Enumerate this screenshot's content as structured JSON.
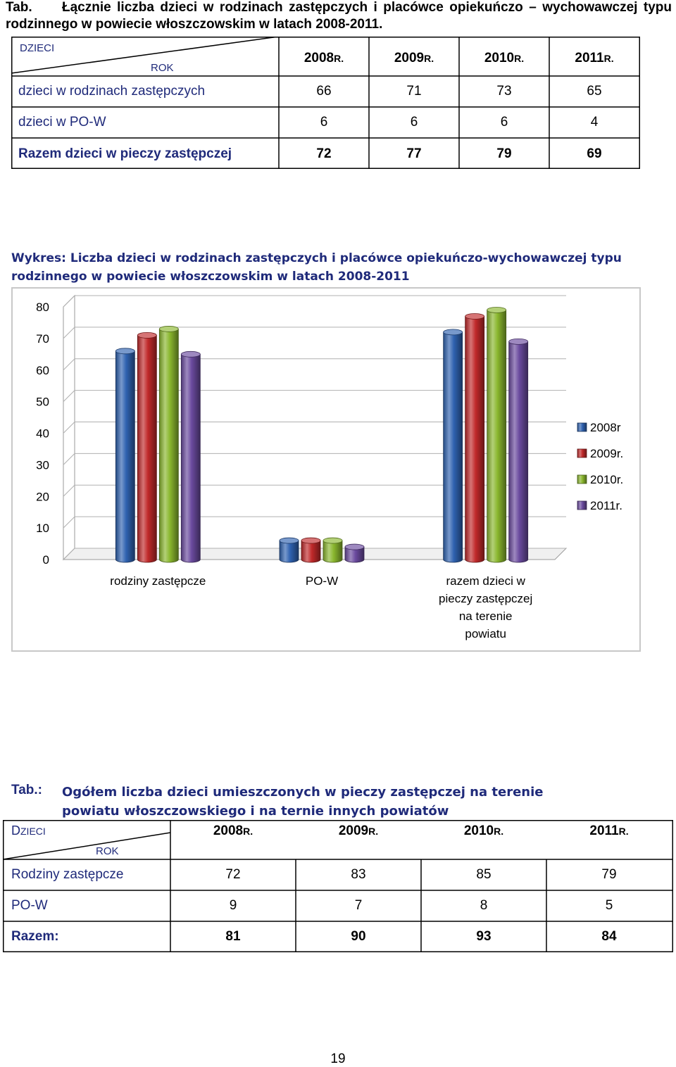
{
  "table1": {
    "label": "Tab.",
    "title_line1": "Łącznie liczba dzieci w rodzinach zastępczych i placówce opiekuńczo – wychowawczej typu",
    "title_line2": "rodzinnego w powiecie włoszczowskim w latach 2008-2011.",
    "header_dzieci": "DZIECI",
    "header_rok": "ROK",
    "years": [
      {
        "num": "2008",
        "suffix": "R."
      },
      {
        "num": "2009",
        "suffix": "R."
      },
      {
        "num": "2010",
        "suffix": "R."
      },
      {
        "num": "2011",
        "suffix": "R."
      }
    ],
    "rows": [
      {
        "label": "dzieci w rodzinach zastępczych",
        "values": [
          "66",
          "71",
          "73",
          "65"
        ]
      },
      {
        "label": "dzieci w PO-W",
        "values": [
          "6",
          "6",
          "6",
          "4"
        ]
      },
      {
        "label": "Razem dzieci w pieczy zastępczej",
        "values": [
          "72",
          "77",
          "79",
          "69"
        ]
      }
    ]
  },
  "chart_title": "Wykres: Liczba dzieci w rodzinach zastępczych i placówce opiekuńczo-wychowawczej typu rodzinnego w powiecie włoszczowskim w latach 2008-2011",
  "chart_data": {
    "type": "bar",
    "categories": [
      "rodziny zastępcze",
      "PO-W",
      "razem dzieci w pieczy zastępczej na terenie powiatu"
    ],
    "category_lines": [
      [
        "rodziny zastępcze"
      ],
      [
        "PO-W"
      ],
      [
        "razem dzieci w",
        "pieczy zastępczej",
        "na terenie",
        "powiatu"
      ]
    ],
    "series": [
      {
        "name": "2008r",
        "values": [
          66,
          6,
          72
        ],
        "color": "#2f62b0"
      },
      {
        "name": "2009r.",
        "values": [
          71,
          6,
          77
        ],
        "color": "#c0292a"
      },
      {
        "name": "2010r.",
        "values": [
          73,
          6,
          79
        ],
        "color": "#8ab72e"
      },
      {
        "name": "2011r.",
        "values": [
          65,
          4,
          69
        ],
        "color": "#6a4a9e"
      }
    ],
    "ylim": [
      0,
      80
    ],
    "yticks": [
      0,
      10,
      20,
      30,
      40,
      50,
      60,
      70,
      80
    ],
    "legend_position": "right",
    "grid": true,
    "style": "3d-cylinder"
  },
  "table2": {
    "label": "Tab.:",
    "title": "Ogółem liczba dzieci umieszczonych w pieczy zastępczej na terenie powiatu włoszczowskiego i na ternie innych powiatów",
    "header_dzieci_first": "D",
    "header_dzieci_rest": "ZIECI",
    "header_rok": "ROK",
    "years": [
      {
        "num": "2008",
        "suffix": "R."
      },
      {
        "num": "2009",
        "suffix": "R."
      },
      {
        "num": "2010",
        "suffix": "R."
      },
      {
        "num": "2011",
        "suffix": "R."
      }
    ],
    "rows": [
      {
        "label": "Rodziny zastępcze",
        "values": [
          "72",
          "83",
          "85",
          "79"
        ]
      },
      {
        "label": "PO-W",
        "values": [
          "9",
          "7",
          "8",
          "5"
        ]
      },
      {
        "label": "Razem:",
        "values": [
          "81",
          "90",
          "93",
          "84"
        ]
      }
    ]
  },
  "page_number": "19"
}
